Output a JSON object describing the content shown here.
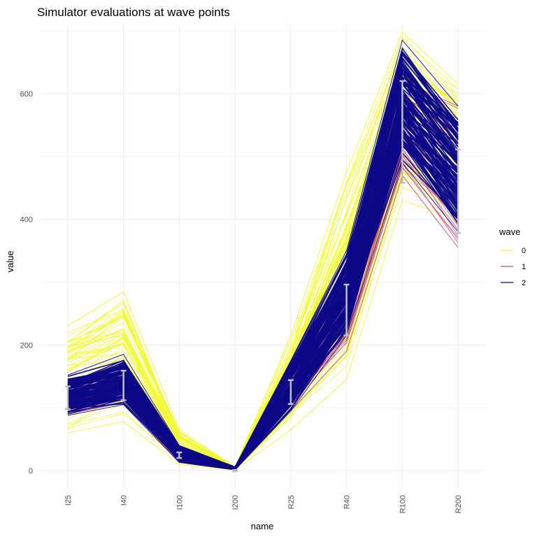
{
  "chart_data": {
    "type": "line",
    "title": "Simulator evaluations at wave points",
    "xlabel": "name",
    "ylabel": "value",
    "categories": [
      "I25",
      "I40",
      "I100",
      "I200",
      "R25",
      "R40",
      "R100",
      "R200"
    ],
    "ylim": [
      -30,
      710
    ],
    "yticks": [
      0,
      200,
      400,
      600
    ],
    "grid": true,
    "legend": {
      "title": "wave",
      "placement": "right",
      "entries": [
        {
          "label": "0",
          "color": "#F0F921"
        },
        {
          "label": "1",
          "color": "#CC4778"
        },
        {
          "label": "2",
          "color": "#0D0887"
        }
      ]
    },
    "series": [
      {
        "name": "0",
        "color": "#F0F921",
        "line_count": 60,
        "band_low": [
          60,
          78,
          10,
          1,
          65,
          145,
          430,
          400
        ],
        "band_high": [
          230,
          285,
          65,
          6,
          215,
          475,
          698,
          615
        ]
      },
      {
        "name": "1",
        "color": "#CC4778",
        "line_count": 40,
        "band_low": [
          90,
          108,
          14,
          1,
          95,
          190,
          470,
          355
        ],
        "band_high": [
          140,
          165,
          38,
          5,
          170,
          340,
          620,
          580
        ]
      },
      {
        "name": "2",
        "color": "#0D0887",
        "line_count": 120,
        "band_low": [
          88,
          105,
          13,
          1,
          95,
          215,
          490,
          380
        ],
        "band_high": [
          152,
          185,
          40,
          6,
          175,
          350,
          685,
          580
        ]
      }
    ],
    "error_bars": {
      "color": "#BEBEBE",
      "points": [
        {
          "category": "I25",
          "low": 98,
          "mid": 114,
          "high": 134
        },
        {
          "category": "I40",
          "low": 112,
          "mid": 133,
          "high": 159
        },
        {
          "category": "I100",
          "low": 20,
          "mid": 24,
          "high": 29
        },
        {
          "category": "I200",
          "low": -1,
          "mid": 0,
          "high": 1
        },
        {
          "category": "R25",
          "low": 106,
          "mid": 126,
          "high": 144
        },
        {
          "category": "R40",
          "low": 215,
          "mid": 257,
          "high": 296
        },
        {
          "category": "R100",
          "low": 458,
          "mid": 538,
          "high": 620
        },
        {
          "category": "R200",
          "low": 378,
          "mid": 445,
          "high": 511
        }
      ]
    }
  }
}
